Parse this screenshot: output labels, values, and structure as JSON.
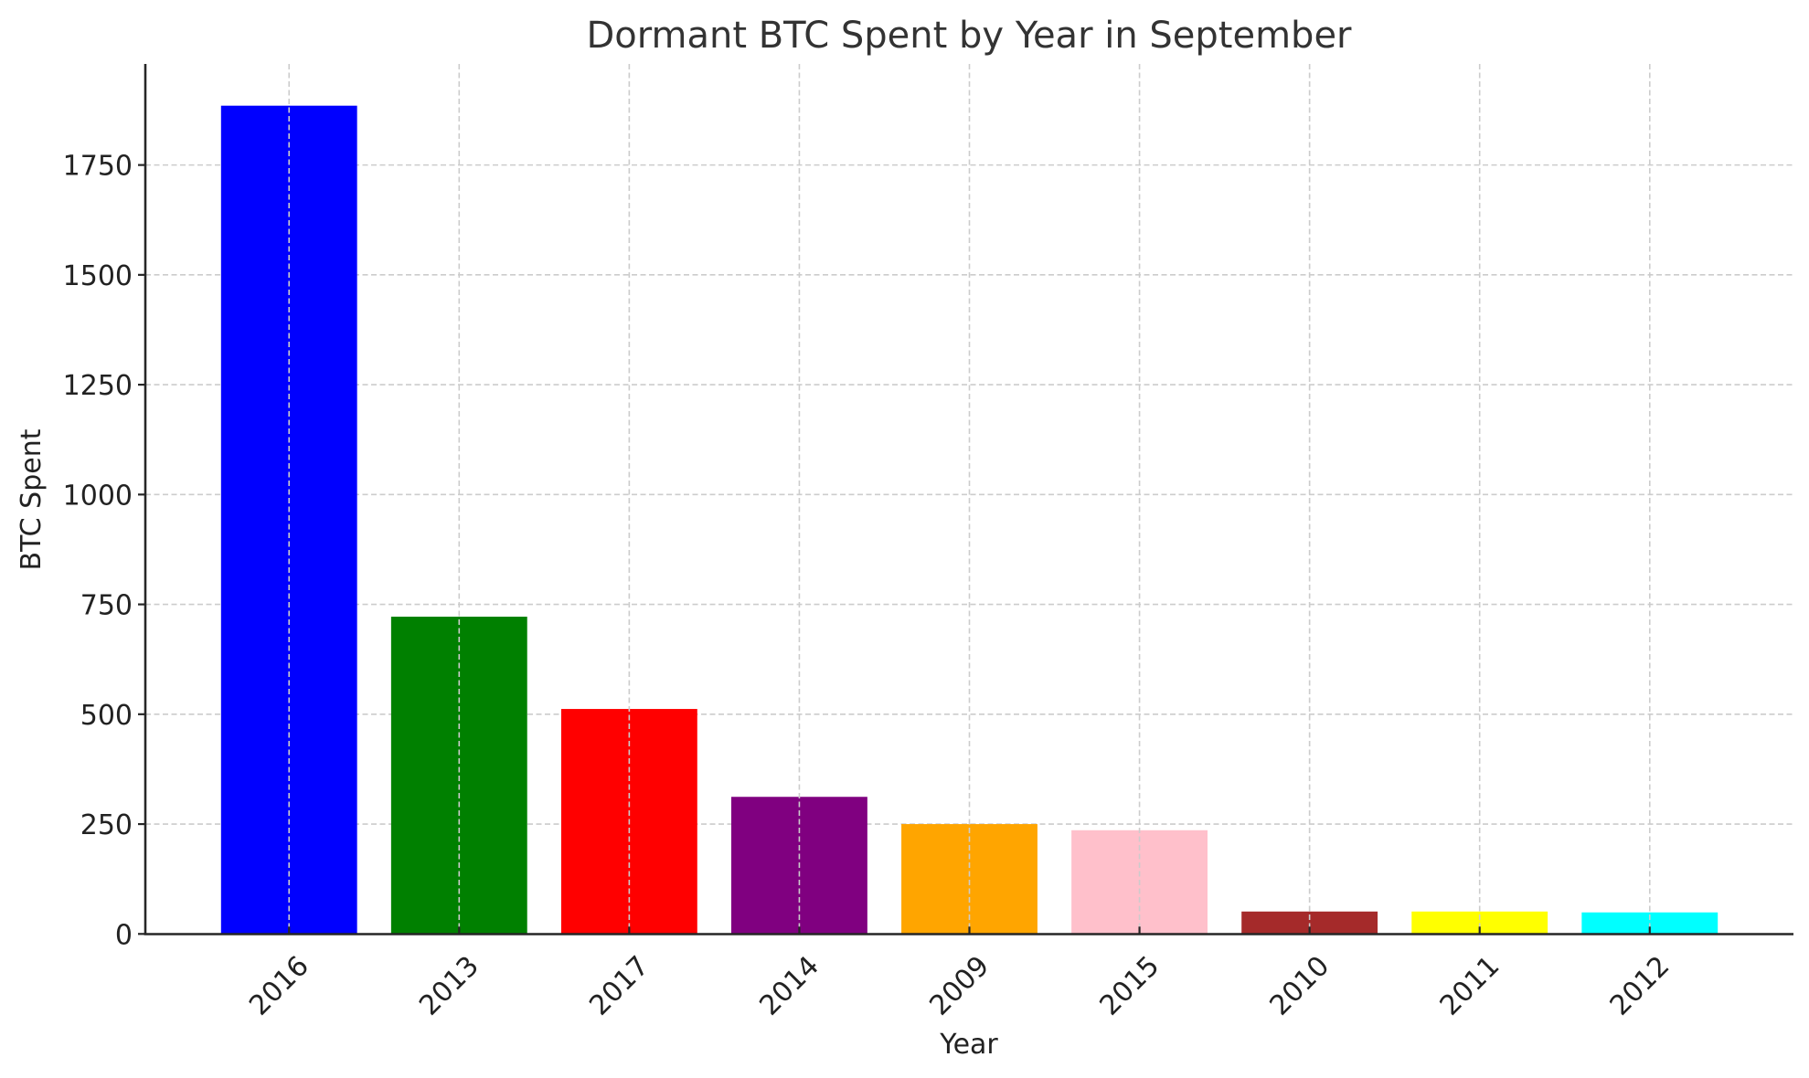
{
  "chart_data": {
    "type": "bar",
    "title": "Dormant BTC Spent by Year in September",
    "xlabel": "Year",
    "ylabel": "BTC Spent",
    "categories": [
      "2016",
      "2013",
      "2017",
      "2014",
      "2009",
      "2015",
      "2010",
      "2011",
      "2012"
    ],
    "values": [
      1885,
      722,
      512,
      312,
      250,
      236,
      51,
      51,
      49
    ],
    "colors": [
      "#0000ff",
      "#008000",
      "#ff0000",
      "#800080",
      "#ffa500",
      "#ffc0cb",
      "#a52a2a",
      "#ffff00",
      "#00ffff"
    ],
    "yticks": [
      0,
      250,
      500,
      750,
      1000,
      1250,
      1500,
      1750
    ],
    "ytick_labels": [
      "0",
      "250",
      "500",
      "750",
      "1000",
      "1250",
      "1500",
      "1750"
    ],
    "ylim": [
      0,
      1980
    ],
    "xlim": [
      -0.845,
      8.845
    ],
    "xtick_rotation": 45,
    "grid": true,
    "grid_style": "dashed",
    "legend": null
  }
}
